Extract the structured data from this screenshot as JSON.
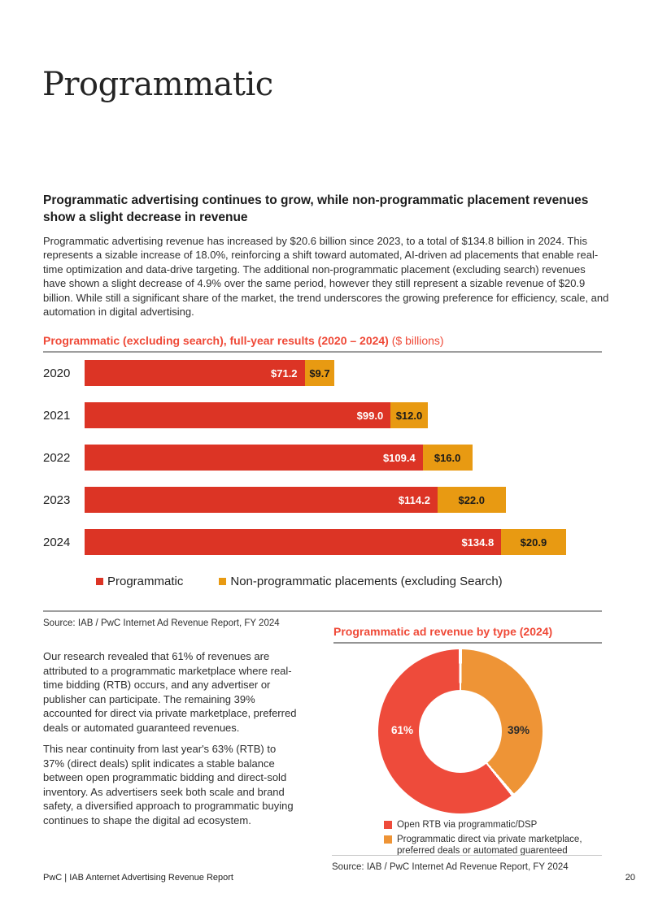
{
  "page": {
    "title": "Programmatic",
    "footer": {
      "left": "PwC | IAB Anternet Advertising Revenue Report",
      "page_number": "20"
    }
  },
  "intro": {
    "heading": "Programmatic advertising continues to grow, while non-programmatic placement revenues show a slight decrease in revenue",
    "body": "Programmatic advertising revenue has increased by $20.6 billion since 2023, to a total of $134.8 billion in 2024. This represents a sizable increase of 18.0%, reinforcing a shift toward automated, AI-driven ad placements that enable real-time optimization and data-drive targeting. The additional non-programmatic placement (excluding search) revenues have shown a slight decrease of 4.9% over the same period, however they still represent a sizable revenue of $20.9 billion. While still a significant share of the market, the trend underscores the growing preference for efficiency, scale, and automation in digital advertising."
  },
  "columns": {
    "paragraphs": [
      "Our research revealed that 61% of revenues are attributed to a programmatic marketplace where real-time bidding (RTB) occurs, and any advertiser or publisher can participate. The remaining 39% accounted for direct via private marketplace, preferred deals or automated guaranteed revenues.",
      "This near continuity from last year's 63% (RTB) to 37% (direct deals) split indicates a stable balance between open programmatic bidding and direct-sold inventory. As advertisers seek both scale and brand safety, a diversified approach to programmatic buying continues to shape the digital ad ecosystem."
    ]
  },
  "chart_data": [
    {
      "type": "bar",
      "orientation": "horizontal",
      "title": "Programmatic (excluding search), full-year results (2020 – 2024)",
      "title_suffix": "($ billions)",
      "categories": [
        "2020",
        "2021",
        "2022",
        "2023",
        "2024"
      ],
      "series": [
        {
          "name": "Programmatic",
          "color": "#dc3425",
          "values": [
            71.2,
            99.0,
            109.4,
            114.2,
            134.8
          ],
          "labels": [
            "$71.2",
            "$99.0",
            "$109.4",
            "$114.2",
            "$134.8"
          ]
        },
        {
          "name": "Non-programmatic placements (excluding Search)",
          "color": "#e89a12",
          "values": [
            9.7,
            12.0,
            16.0,
            22.0,
            20.9
          ],
          "labels": [
            "$9.7",
            "$12.0",
            "$16.0",
            "$22.0",
            "$20.9"
          ]
        }
      ],
      "legend_position": "bottom",
      "axes": "none",
      "source": "Source: IAB / PwC Internet Ad Revenue Report, FY 2024"
    },
    {
      "type": "donut",
      "title": "Programmatic ad revenue by type (2024)",
      "slices": [
        {
          "label": "Open RTB via programmatic/DSP",
          "value": 61,
          "display": "61%",
          "color": "#ee4b3b",
          "label_color": "#ffffff"
        },
        {
          "label": "Programmatic direct via private marketplace, preferred deals or automated guarenteed",
          "value": 39,
          "display": "39%",
          "color": "#ee9436",
          "label_color": "#2b2b2b"
        }
      ],
      "legend_position": "bottom",
      "source": "Source: IAB / PwC Internet Ad Revenue Report, FY 2024"
    }
  ]
}
